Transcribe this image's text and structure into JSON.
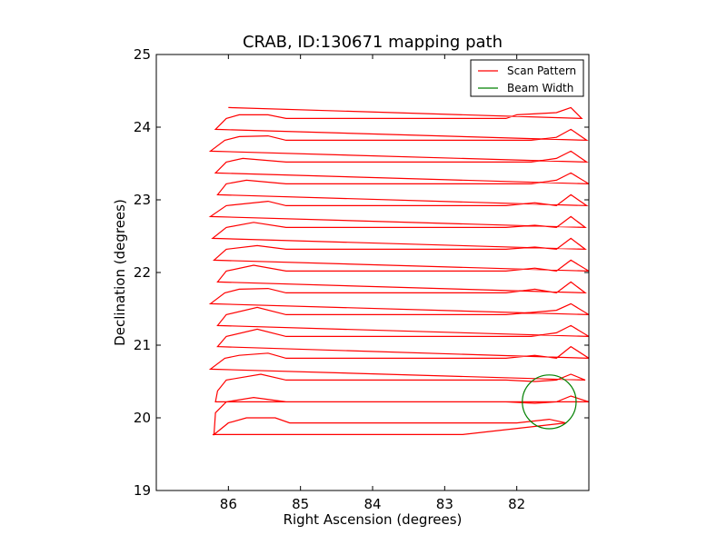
{
  "chart_data": {
    "type": "line",
    "title": "CRAB, ID:130671 mapping path",
    "xlabel": "Right Ascension (degrees)",
    "ylabel": "Declination (degrees)",
    "xlim": [
      87.0,
      81.0
    ],
    "ylim": [
      19,
      25
    ],
    "x_inverted": true,
    "xticks": [
      86,
      85,
      84,
      83,
      82
    ],
    "yticks": [
      19,
      20,
      21,
      22,
      23,
      24,
      25
    ],
    "grid": false,
    "legend_position": "top-right",
    "series": [
      {
        "name": "Scan Pattern",
        "color": "#ff0000",
        "points": [
          [
            86.22,
            19.77
          ],
          [
            82.75,
            19.77
          ],
          [
            81.32,
            19.93
          ],
          [
            81.55,
            19.98
          ],
          [
            82.0,
            19.93
          ],
          [
            85.15,
            19.93
          ],
          [
            85.35,
            20.0
          ],
          [
            85.75,
            20.0
          ],
          [
            86.0,
            19.93
          ],
          [
            86.2,
            19.77
          ],
          [
            86.18,
            20.07
          ],
          [
            86.03,
            20.22
          ],
          [
            85.65,
            20.28
          ],
          [
            85.2,
            20.22
          ],
          [
            82.15,
            20.22
          ],
          [
            81.75,
            20.2
          ],
          [
            81.45,
            20.22
          ],
          [
            81.25,
            20.3
          ],
          [
            81.0,
            20.22
          ],
          [
            86.18,
            20.22
          ],
          [
            86.15,
            20.37
          ],
          [
            86.03,
            20.52
          ],
          [
            85.55,
            20.6
          ],
          [
            85.2,
            20.52
          ],
          [
            82.15,
            20.52
          ],
          [
            81.75,
            20.5
          ],
          [
            81.45,
            20.52
          ],
          [
            81.25,
            20.6
          ],
          [
            81.05,
            20.52
          ],
          [
            86.25,
            20.67
          ],
          [
            86.05,
            20.82
          ],
          [
            85.85,
            20.86
          ],
          [
            85.45,
            20.89
          ],
          [
            85.2,
            20.82
          ],
          [
            82.15,
            20.82
          ],
          [
            81.75,
            20.86
          ],
          [
            81.45,
            20.82
          ],
          [
            81.25,
            20.98
          ],
          [
            81.0,
            20.82
          ],
          [
            86.15,
            20.98
          ],
          [
            86.03,
            21.12
          ],
          [
            85.6,
            21.22
          ],
          [
            85.2,
            21.12
          ],
          [
            82.15,
            21.12
          ],
          [
            81.8,
            21.12
          ],
          [
            81.45,
            21.17
          ],
          [
            81.25,
            21.27
          ],
          [
            81.0,
            21.12
          ],
          [
            86.15,
            21.27
          ],
          [
            86.03,
            21.42
          ],
          [
            85.6,
            21.52
          ],
          [
            85.2,
            21.42
          ],
          [
            82.15,
            21.42
          ],
          [
            81.8,
            21.45
          ],
          [
            81.45,
            21.48
          ],
          [
            81.25,
            21.57
          ],
          [
            81.0,
            21.42
          ],
          [
            86.25,
            21.57
          ],
          [
            86.05,
            21.72
          ],
          [
            85.85,
            21.77
          ],
          [
            85.45,
            21.78
          ],
          [
            85.2,
            21.72
          ],
          [
            82.15,
            21.72
          ],
          [
            81.75,
            21.77
          ],
          [
            81.45,
            21.72
          ],
          [
            81.25,
            21.87
          ],
          [
            81.05,
            21.72
          ],
          [
            86.15,
            21.87
          ],
          [
            86.03,
            22.02
          ],
          [
            85.65,
            22.1
          ],
          [
            85.2,
            22.02
          ],
          [
            82.15,
            22.02
          ],
          [
            81.75,
            22.06
          ],
          [
            81.45,
            22.02
          ],
          [
            81.25,
            22.17
          ],
          [
            81.0,
            22.02
          ],
          [
            86.2,
            22.17
          ],
          [
            86.03,
            22.32
          ],
          [
            85.6,
            22.37
          ],
          [
            85.2,
            22.32
          ],
          [
            82.15,
            22.32
          ],
          [
            81.75,
            22.35
          ],
          [
            81.45,
            22.32
          ],
          [
            81.25,
            22.47
          ],
          [
            81.05,
            22.32
          ],
          [
            86.22,
            22.47
          ],
          [
            86.03,
            22.62
          ],
          [
            85.65,
            22.69
          ],
          [
            85.2,
            22.62
          ],
          [
            82.15,
            22.62
          ],
          [
            81.75,
            22.65
          ],
          [
            81.45,
            22.62
          ],
          [
            81.25,
            22.77
          ],
          [
            81.05,
            22.62
          ],
          [
            86.25,
            22.77
          ],
          [
            86.03,
            22.92
          ],
          [
            85.45,
            22.98
          ],
          [
            85.2,
            22.92
          ],
          [
            82.15,
            22.92
          ],
          [
            81.75,
            22.96
          ],
          [
            81.45,
            22.92
          ],
          [
            81.25,
            23.07
          ],
          [
            81.03,
            22.92
          ],
          [
            86.15,
            23.07
          ],
          [
            86.03,
            23.22
          ],
          [
            85.75,
            23.27
          ],
          [
            85.2,
            23.22
          ],
          [
            82.15,
            23.22
          ],
          [
            81.8,
            23.22
          ],
          [
            81.45,
            23.27
          ],
          [
            81.25,
            23.37
          ],
          [
            81.0,
            23.22
          ],
          [
            86.18,
            23.37
          ],
          [
            86.03,
            23.52
          ],
          [
            85.8,
            23.57
          ],
          [
            85.2,
            23.52
          ],
          [
            82.15,
            23.52
          ],
          [
            81.8,
            23.52
          ],
          [
            81.45,
            23.57
          ],
          [
            81.25,
            23.67
          ],
          [
            81.03,
            23.52
          ],
          [
            86.25,
            23.67
          ],
          [
            86.05,
            23.82
          ],
          [
            85.85,
            23.87
          ],
          [
            85.45,
            23.88
          ],
          [
            85.2,
            23.82
          ],
          [
            82.15,
            23.82
          ],
          [
            81.8,
            23.82
          ],
          [
            81.45,
            23.86
          ],
          [
            81.25,
            23.97
          ],
          [
            81.03,
            23.82
          ],
          [
            86.18,
            23.97
          ],
          [
            86.03,
            24.12
          ],
          [
            85.85,
            24.17
          ],
          [
            85.45,
            24.17
          ],
          [
            85.2,
            24.12
          ],
          [
            82.15,
            24.12
          ],
          [
            82.0,
            24.17
          ],
          [
            81.45,
            24.2
          ],
          [
            81.25,
            24.27
          ],
          [
            81.1,
            24.12
          ],
          [
            86.0,
            24.27
          ]
        ]
      },
      {
        "name": "Beam Width",
        "color": "#008000",
        "shape": "circle",
        "center": [
          81.55,
          20.22
        ],
        "radius": 0.37
      }
    ]
  }
}
